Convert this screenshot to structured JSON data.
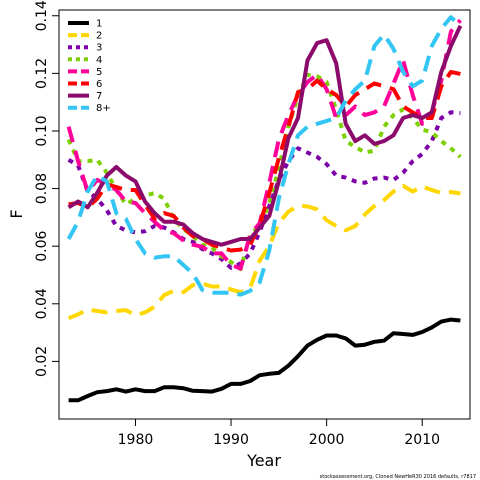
{
  "chart_data": {
    "type": "line",
    "title": "",
    "xlabel": "Year",
    "ylabel": "F",
    "xlim": [
      1972,
      2015
    ],
    "ylim": [
      0.0,
      0.142
    ],
    "xticks": [
      1980,
      1990,
      2000,
      2010
    ],
    "yticks": [
      0.02,
      0.04,
      0.06,
      0.08,
      0.1,
      0.12,
      0.14
    ],
    "ytick_labels": [
      "0.02",
      "0.04",
      "0.06",
      "0.08",
      "0.10",
      "0.12",
      "0.14"
    ],
    "grid": false,
    "legend_position": "top-left",
    "footnote": "stockassessment.org, Cloned NewHeR30 2016 defaults, r7817",
    "x": [
      1973,
      1974,
      1975,
      1976,
      1977,
      1978,
      1979,
      1980,
      1981,
      1982,
      1983,
      1984,
      1985,
      1986,
      1987,
      1988,
      1989,
      1990,
      1991,
      1992,
      1993,
      1994,
      1995,
      1996,
      1997,
      1998,
      1999,
      2000,
      2001,
      2002,
      2003,
      2004,
      2005,
      2006,
      2007,
      2008,
      2009,
      2010,
      2011,
      2012,
      2013,
      2014
    ],
    "series": [
      {
        "name": "1",
        "color": "#000000",
        "dash": "solid",
        "values": [
          0.0065,
          0.0065,
          0.008,
          0.0093,
          0.0097,
          0.0103,
          0.0095,
          0.0103,
          0.0097,
          0.0097,
          0.011,
          0.011,
          0.0107,
          0.0098,
          0.0097,
          0.0095,
          0.0105,
          0.0122,
          0.0122,
          0.0132,
          0.0152,
          0.0157,
          0.016,
          0.0185,
          0.0218,
          0.0255,
          0.0275,
          0.029,
          0.029,
          0.028,
          0.0255,
          0.0258,
          0.0268,
          0.0272,
          0.0298,
          0.0295,
          0.0292,
          0.0302,
          0.0318,
          0.0338,
          0.0345,
          0.0342
        ]
      },
      {
        "name": "2",
        "color": "#ffd700",
        "dash": "long",
        "values": [
          0.035,
          0.0363,
          0.038,
          0.0375,
          0.037,
          0.0375,
          0.0378,
          0.036,
          0.037,
          0.039,
          0.043,
          0.0445,
          0.044,
          0.0465,
          0.047,
          0.046,
          0.046,
          0.045,
          0.044,
          0.0455,
          0.055,
          0.06,
          0.068,
          0.072,
          0.074,
          0.0738,
          0.0728,
          0.069,
          0.067,
          0.0655,
          0.067,
          0.071,
          0.074,
          0.076,
          0.079,
          0.081,
          0.079,
          0.0808,
          0.0795,
          0.0785,
          0.0788,
          0.0783
        ]
      },
      {
        "name": "3",
        "color": "#7b00a8",
        "dash": "dotted",
        "values": [
          0.09,
          0.088,
          0.079,
          0.0765,
          0.0725,
          0.067,
          0.0655,
          0.0648,
          0.0652,
          0.067,
          0.0665,
          0.0648,
          0.0625,
          0.0615,
          0.059,
          0.0575,
          0.0555,
          0.0525,
          0.054,
          0.0575,
          0.065,
          0.074,
          0.083,
          0.0895,
          0.094,
          0.0925,
          0.091,
          0.0885,
          0.0845,
          0.0838,
          0.0825,
          0.082,
          0.0835,
          0.0838,
          0.083,
          0.0855,
          0.0895,
          0.092,
          0.0965,
          0.1045,
          0.1065,
          0.1062
        ]
      },
      {
        "name": "4",
        "color": "#7cd000",
        "dash": "dotted",
        "values": [
          0.097,
          0.0895,
          0.0895,
          0.09,
          0.0855,
          0.0795,
          0.0745,
          0.0765,
          0.0775,
          0.0785,
          0.0765,
          0.0695,
          0.066,
          0.0635,
          0.0605,
          0.0595,
          0.0565,
          0.0545,
          0.052,
          0.064,
          0.067,
          0.075,
          0.087,
          0.1015,
          0.112,
          0.1195,
          0.119,
          0.117,
          0.1075,
          0.0965,
          0.0945,
          0.0925,
          0.0932,
          0.1015,
          0.1055,
          0.1075,
          0.1045,
          0.1005,
          0.0995,
          0.0965,
          0.094,
          0.091
        ]
      },
      {
        "name": "5",
        "color": "#ff0099",
        "dash": "long",
        "values": [
          0.1015,
          0.0895,
          0.079,
          0.083,
          0.0815,
          0.0795,
          0.0755,
          0.075,
          0.0715,
          0.0685,
          0.0655,
          0.0645,
          0.062,
          0.0605,
          0.0598,
          0.0575,
          0.0575,
          0.0535,
          0.0522,
          0.064,
          0.068,
          0.082,
          0.097,
          0.1055,
          0.1125,
          0.117,
          0.1195,
          0.1145,
          0.1045,
          0.1055,
          0.1085,
          0.1055,
          0.1065,
          0.1085,
          0.1165,
          0.1245,
          0.1125,
          0.1025,
          0.1065,
          0.1175,
          0.1345,
          0.1385
        ]
      },
      {
        "name": "6",
        "color": "#ff0000",
        "dash": "long",
        "values": [
          0.0745,
          0.075,
          0.0735,
          0.0765,
          0.0815,
          0.0805,
          0.0795,
          0.0795,
          0.0745,
          0.0695,
          0.0715,
          0.0705,
          0.0665,
          0.0635,
          0.0625,
          0.0605,
          0.0595,
          0.0585,
          0.0588,
          0.0605,
          0.0675,
          0.0785,
          0.0905,
          0.1015,
          0.1135,
          0.1145,
          0.1175,
          0.1145,
          0.1125,
          0.1085,
          0.1125,
          0.1145,
          0.1165,
          0.1155,
          0.1145,
          0.1085,
          0.1065,
          0.1045,
          0.1045,
          0.1155,
          0.1205,
          0.1198
        ]
      },
      {
        "name": "7",
        "color": "#8b0a6b",
        "dash": "solid",
        "values": [
          0.0735,
          0.0755,
          0.0735,
          0.0785,
          0.0845,
          0.0875,
          0.0845,
          0.0825,
          0.0755,
          0.0715,
          0.0685,
          0.0685,
          0.0675,
          0.0645,
          0.0625,
          0.0615,
          0.0605,
          0.0615,
          0.0625,
          0.0625,
          0.0665,
          0.0705,
          0.0825,
          0.0975,
          0.1045,
          0.1245,
          0.1305,
          0.1315,
          0.1235,
          0.1025,
          0.0965,
          0.0985,
          0.0955,
          0.0965,
          0.0985,
          0.1045,
          0.1055,
          0.1045,
          0.1065,
          0.1205,
          0.1295,
          0.1365
        ]
      },
      {
        "name": "8+",
        "color": "#33c5f3",
        "dash": "long",
        "values": [
          0.0625,
          0.0685,
          0.079,
          0.0845,
          0.0825,
          0.0715,
          0.0695,
          0.0625,
          0.0575,
          0.056,
          0.0565,
          0.0565,
          0.0535,
          0.0505,
          0.0448,
          0.0438,
          0.0438,
          0.0438,
          0.0432,
          0.0445,
          0.0475,
          0.0585,
          0.0765,
          0.0885,
          0.0985,
          0.1015,
          0.1025,
          0.1035,
          0.1045,
          0.1105,
          0.1145,
          0.1175,
          0.1295,
          0.1335,
          0.1285,
          0.1205,
          0.1155,
          0.1175,
          0.1295,
          0.1355,
          0.1395,
          0.1365
        ]
      }
    ]
  }
}
